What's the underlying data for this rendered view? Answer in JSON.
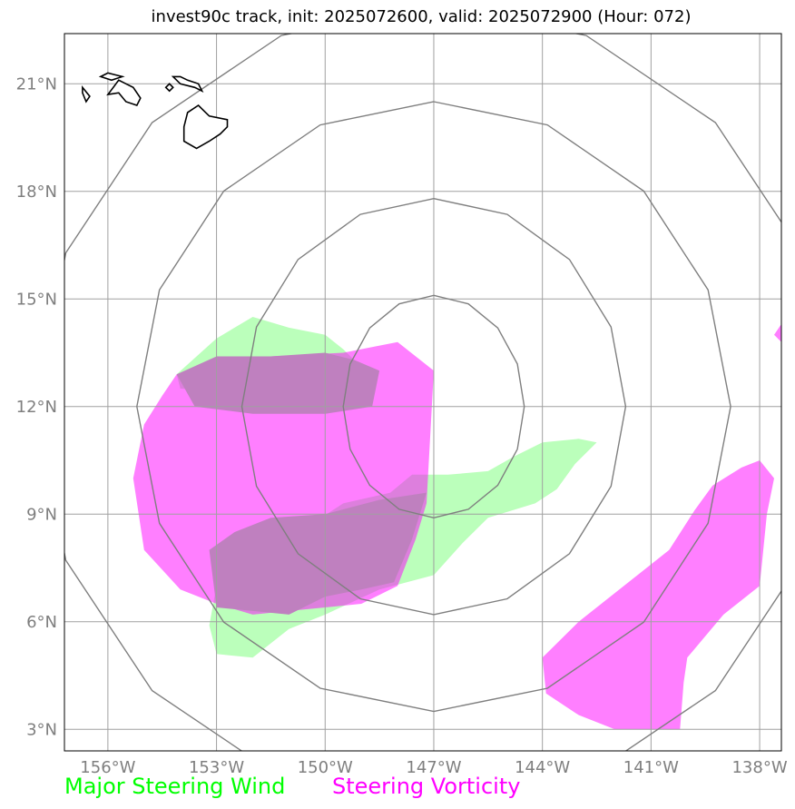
{
  "title": "invest90c track, init: 2025072600, valid: 2025072900 (Hour: 072)",
  "map": {
    "lon_range": [
      -157.2,
      -137.4
    ],
    "lat_range": [
      2.4,
      22.4
    ],
    "lon_ticks": [
      {
        "value": -156,
        "label": "156°W"
      },
      {
        "value": -153,
        "label": "153°W"
      },
      {
        "value": -150,
        "label": "150°W"
      },
      {
        "value": -147,
        "label": "147°W"
      },
      {
        "value": -144,
        "label": "144°W"
      },
      {
        "value": -141,
        "label": "141°W"
      },
      {
        "value": -138,
        "label": "138°W"
      }
    ],
    "lat_ticks": [
      {
        "value": 3,
        "label": "3°N"
      },
      {
        "value": 6,
        "label": "6°N"
      },
      {
        "value": 9,
        "label": "9°N"
      },
      {
        "value": 12,
        "label": "12°N"
      },
      {
        "value": 15,
        "label": "15°N"
      },
      {
        "value": 18,
        "label": "18°N"
      },
      {
        "value": 21,
        "label": "21°N"
      }
    ],
    "grid": true,
    "range_rings": {
      "center": [
        -147.0,
        12.0
      ],
      "lon_radii": [
        2.5,
        5.3,
        8.2,
        11.0
      ],
      "lat_radii": [
        3.1,
        5.8,
        8.5,
        11.2
      ],
      "color": "#7f7f7f"
    },
    "steering_wind_color": "#bbffbb",
    "steering_vorticity_color": "#ff00ff",
    "steering_wind_areas": [
      [
        [
          -154.1,
          12.9
        ],
        [
          -153.0,
          13.9
        ],
        [
          -152.0,
          14.5
        ],
        [
          -151.0,
          14.2
        ],
        [
          -150.0,
          14.0
        ],
        [
          -149.5,
          13.6
        ],
        [
          -149.2,
          13.3
        ],
        [
          -149.8,
          12.8
        ],
        [
          -151.0,
          12.6
        ],
        [
          -152.5,
          12.4
        ],
        [
          -154.0,
          12.5
        ]
      ],
      [
        [
          -149.5,
          9.3
        ],
        [
          -148.2,
          9.6
        ],
        [
          -147.6,
          10.1
        ],
        [
          -146.6,
          10.1
        ],
        [
          -145.5,
          10.2
        ],
        [
          -144.8,
          10.6
        ],
        [
          -144.0,
          11.0
        ],
        [
          -143.0,
          11.1
        ],
        [
          -142.5,
          11.0
        ],
        [
          -143.1,
          10.4
        ],
        [
          -143.6,
          9.7
        ],
        [
          -144.2,
          9.3
        ],
        [
          -145.5,
          8.9
        ],
        [
          -146.2,
          8.2
        ],
        [
          -147.0,
          7.3
        ],
        [
          -148.5,
          6.9
        ],
        [
          -150.0,
          6.2
        ],
        [
          -151.0,
          5.8
        ],
        [
          -152.0,
          5.0
        ],
        [
          -153.0,
          5.1
        ],
        [
          -153.2,
          5.9
        ],
        [
          -153.0,
          7.0
        ]
      ]
    ],
    "steering_vorticity_areas": [
      [
        [
          -154.1,
          12.9
        ],
        [
          -153.0,
          13.3
        ],
        [
          -151.5,
          13.4
        ],
        [
          -149.5,
          13.5
        ],
        [
          -148.0,
          13.8
        ],
        [
          -147.0,
          13.0
        ],
        [
          -147.2,
          9.3
        ],
        [
          -147.5,
          8.3
        ],
        [
          -148.0,
          7.0
        ],
        [
          -149.0,
          6.5
        ],
        [
          -150.0,
          6.4
        ],
        [
          -151.0,
          6.3
        ],
        [
          -152.0,
          6.2
        ],
        [
          -153.0,
          6.5
        ],
        [
          -154.0,
          6.9
        ],
        [
          -155.0,
          8.0
        ],
        [
          -155.3,
          10.0
        ],
        [
          -155.0,
          11.5
        ],
        [
          -154.5,
          12.3
        ]
      ],
      [
        [
          -144.0,
          5.0
        ],
        [
          -143.0,
          6.0
        ],
        [
          -141.5,
          7.2
        ],
        [
          -140.5,
          8.0
        ],
        [
          -139.8,
          9.1
        ],
        [
          -139.3,
          9.8
        ],
        [
          -138.5,
          10.3
        ],
        [
          -138.0,
          10.5
        ],
        [
          -137.6,
          10.0
        ],
        [
          -137.8,
          9.0
        ],
        [
          -138.0,
          7.0
        ],
        [
          -139.0,
          6.2
        ],
        [
          -139.5,
          5.6
        ],
        [
          -140.0,
          5.0
        ],
        [
          -140.1,
          4.3
        ],
        [
          -140.2,
          3.0
        ],
        [
          -142.0,
          3.0
        ],
        [
          -143.0,
          3.4
        ],
        [
          -143.9,
          4.0
        ]
      ],
      [
        [
          -137.4,
          14.3
        ],
        [
          -137.6,
          14.0
        ],
        [
          -137.4,
          13.8
        ]
      ]
    ],
    "overlap_areas": [
      [
        [
          -154.1,
          12.9
        ],
        [
          -153.0,
          13.4
        ],
        [
          -151.5,
          13.4
        ],
        [
          -150.0,
          13.5
        ],
        [
          -149.2,
          13.3
        ],
        [
          -148.5,
          13.0
        ],
        [
          -148.7,
          12.0
        ],
        [
          -150.0,
          11.8
        ],
        [
          -152.0,
          11.8
        ],
        [
          -153.6,
          12.0
        ]
      ],
      [
        [
          -153.2,
          8.0
        ],
        [
          -152.5,
          8.5
        ],
        [
          -151.5,
          8.9
        ],
        [
          -150.0,
          9.0
        ],
        [
          -148.5,
          9.4
        ],
        [
          -147.2,
          9.6
        ],
        [
          -147.6,
          8.3
        ],
        [
          -148.1,
          7.1
        ],
        [
          -149.0,
          6.9
        ],
        [
          -150.0,
          6.7
        ],
        [
          -151.0,
          6.2
        ],
        [
          -152.0,
          6.3
        ],
        [
          -153.0,
          6.4
        ]
      ]
    ],
    "coastline_islands": [
      [
        [
          -153.55,
          19.2
        ],
        [
          -153.2,
          19.4
        ],
        [
          -152.9,
          19.6
        ],
        [
          -152.7,
          19.8
        ],
        [
          -152.7,
          20.0
        ],
        [
          -153.2,
          20.1
        ],
        [
          -153.3,
          20.2
        ],
        [
          -153.5,
          20.4
        ],
        [
          -153.8,
          20.2
        ],
        [
          -153.9,
          19.8
        ],
        [
          -153.9,
          19.4
        ]
      ],
      [
        [
          -154.2,
          21.2
        ],
        [
          -154.0,
          21.0
        ],
        [
          -153.6,
          20.9
        ],
        [
          -153.4,
          20.8
        ],
        [
          -153.5,
          21.0
        ],
        [
          -153.8,
          21.1
        ],
        [
          -154.0,
          21.2
        ]
      ],
      [
        [
          -154.4,
          20.9
        ],
        [
          -154.3,
          20.8
        ],
        [
          -154.2,
          20.9
        ],
        [
          -154.3,
          21.0
        ]
      ],
      [
        [
          -156.0,
          20.7
        ],
        [
          -155.7,
          20.75
        ],
        [
          -155.5,
          20.5
        ],
        [
          -155.2,
          20.4
        ],
        [
          -155.1,
          20.6
        ],
        [
          -155.3,
          20.9
        ],
        [
          -155.5,
          21.0
        ],
        [
          -155.7,
          21.1
        ]
      ],
      [
        [
          -156.2,
          21.2
        ],
        [
          -155.9,
          21.1
        ],
        [
          -155.6,
          21.2
        ],
        [
          -156.0,
          21.3
        ]
      ],
      [
        [
          -156.7,
          20.9
        ],
        [
          -156.5,
          20.65
        ],
        [
          -156.6,
          20.5
        ],
        [
          -156.7,
          20.75
        ]
      ]
    ]
  },
  "legend": [
    {
      "label": "Major Steering Wind",
      "color": "#00ff00"
    },
    {
      "label": "Steering Vorticity",
      "color": "#ff00ff"
    }
  ]
}
